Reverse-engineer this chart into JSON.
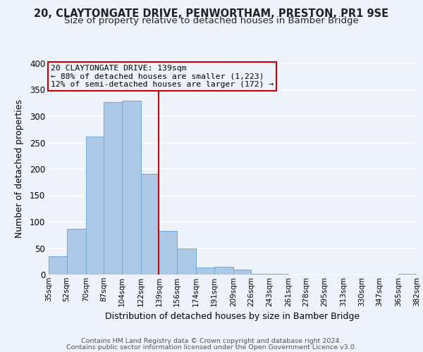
{
  "title": "20, CLAYTONGATE DRIVE, PENWORTHAM, PRESTON, PR1 9SE",
  "subtitle": "Size of property relative to detached houses in Bamber Bridge",
  "xlabel": "Distribution of detached houses by size in Bamber Bridge",
  "ylabel": "Number of detached properties",
  "bar_edges": [
    35,
    52,
    70,
    87,
    104,
    122,
    139,
    156,
    174,
    191,
    209,
    226,
    243,
    261,
    278,
    295,
    313,
    330,
    347,
    365,
    382
  ],
  "bar_heights": [
    35,
    87,
    261,
    327,
    330,
    191,
    83,
    50,
    14,
    15,
    10,
    1,
    1,
    0,
    0,
    0,
    0,
    0,
    0,
    2
  ],
  "bar_color": "#adc9e8",
  "bar_edge_color": "#6aaad4",
  "reference_line_x": 139,
  "reference_line_color": "#cc0000",
  "annotation_line1": "20 CLAYTONGATE DRIVE: 139sqm",
  "annotation_line2": "← 88% of detached houses are smaller (1,223)",
  "annotation_line3": "12% of semi-detached houses are larger (172) →",
  "annotation_box_edge_color": "#cc0000",
  "ylim": [
    0,
    400
  ],
  "yticks": [
    0,
    50,
    100,
    150,
    200,
    250,
    300,
    350,
    400
  ],
  "tick_labels": [
    "35sqm",
    "52sqm",
    "70sqm",
    "87sqm",
    "104sqm",
    "122sqm",
    "139sqm",
    "156sqm",
    "174sqm",
    "191sqm",
    "209sqm",
    "226sqm",
    "243sqm",
    "261sqm",
    "278sqm",
    "295sqm",
    "313sqm",
    "330sqm",
    "347sqm",
    "365sqm",
    "382sqm"
  ],
  "footer_line1": "Contains HM Land Registry data © Crown copyright and database right 2024.",
  "footer_line2": "Contains public sector information licensed under the Open Government Licence v3.0.",
  "background_color": "#eef2fb",
  "title_fontsize": 10.5,
  "subtitle_fontsize": 9.5,
  "axis_label_fontsize": 9,
  "tick_fontsize": 7.5,
  "ytick_fontsize": 8.5,
  "footer_fontsize": 6.8
}
